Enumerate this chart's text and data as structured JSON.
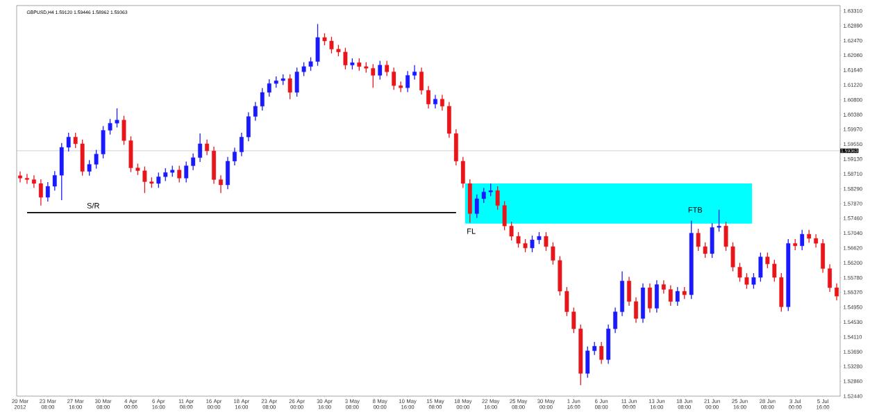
{
  "chart_data": {
    "type": "candlestick",
    "title": "GBPUSD,H4 1.59120 1.59446 1.58962 1.59363",
    "categories": [
      "20 Mar 2012",
      null,
      null,
      null,
      "23 Mar 08:00",
      null,
      null,
      null,
      "27 Mar 16:00",
      null,
      null,
      null,
      "30 Mar 08:00",
      null,
      null,
      null,
      "4 Apr 00:00",
      null,
      null,
      null,
      "6 Apr 16:00",
      null,
      null,
      null,
      "11 Apr 08:00",
      null,
      null,
      null,
      "16 Apr 00:00",
      null,
      null,
      null,
      "18 Apr 16:00",
      null,
      null,
      null,
      "23 Apr 08:00",
      null,
      null,
      null,
      "26 Apr 00:00",
      null,
      null,
      null,
      "30 Apr 16:00",
      null,
      null,
      null,
      "3 May 08:00",
      null,
      null,
      null,
      "8 May 00:00",
      null,
      null,
      null,
      "10 May 16:00",
      null,
      null,
      null,
      "15 May 08:00",
      null,
      null,
      null,
      "18 May 00:00",
      null,
      null,
      null,
      "22 May 16:00",
      null,
      null,
      null,
      "25 May 08:00",
      null,
      null,
      null,
      "30 May 00:00",
      null,
      null,
      null,
      "1 Jun 16:00",
      null,
      null,
      null,
      "6 Jun 08:00",
      null,
      null,
      null,
      "11 Jun 00:00",
      null,
      null,
      null,
      "13 Jun 16:00",
      null,
      null,
      null,
      "18 Jun 08:00",
      null,
      null,
      null,
      "21 Jun 00:00",
      null,
      null,
      null,
      "25 Jun 16:00",
      null,
      null,
      null,
      "28 Jun 08:00",
      null,
      null,
      null,
      "3 Jul 00:00",
      null,
      null,
      null,
      "5 Jul 16:00",
      null,
      null
    ],
    "ohlc": [
      [
        1.5866,
        1.5878,
        1.5847,
        1.5859
      ],
      [
        1.5859,
        1.5871,
        1.5843,
        1.5855
      ],
      [
        1.5855,
        1.5867,
        1.5832,
        1.5844
      ],
      [
        1.5844,
        1.5856,
        1.5782,
        1.5805
      ],
      [
        1.5805,
        1.5848,
        1.5793,
        1.5836
      ],
      [
        1.5836,
        1.5879,
        1.5824,
        1.5867
      ],
      [
        1.5867,
        1.5958,
        1.5797,
        1.5946
      ],
      [
        1.5946,
        1.5987,
        1.5934,
        1.5975
      ],
      [
        1.5975,
        1.5987,
        1.5944,
        1.5956
      ],
      [
        1.5956,
        1.5968,
        1.5866,
        1.5878
      ],
      [
        1.5878,
        1.591,
        1.5866,
        1.5898
      ],
      [
        1.5898,
        1.5939,
        1.5886,
        1.5927
      ],
      [
        1.5927,
        1.6006,
        1.5915,
        1.5994
      ],
      [
        1.5994,
        1.6026,
        1.5982,
        1.6014
      ],
      [
        1.6014,
        1.6056,
        1.6002,
        1.6023
      ],
      [
        1.6023,
        1.6035,
        1.5953,
        1.5965
      ],
      [
        1.5965,
        1.5977,
        1.5876,
        1.5888
      ],
      [
        1.5888,
        1.59,
        1.5868,
        1.588
      ],
      [
        1.588,
        1.5892,
        1.5817,
        1.5849
      ],
      [
        1.5849,
        1.5861,
        1.5832,
        1.5844
      ],
      [
        1.5844,
        1.5875,
        1.5832,
        1.5863
      ],
      [
        1.5863,
        1.5887,
        1.5851,
        1.5875
      ],
      [
        1.5875,
        1.5894,
        1.5863,
        1.5882
      ],
      [
        1.5882,
        1.5894,
        1.5847,
        1.5859
      ],
      [
        1.5859,
        1.5906,
        1.5847,
        1.5894
      ],
      [
        1.5894,
        1.5929,
        1.5882,
        1.5917
      ],
      [
        1.5917,
        1.5985,
        1.5905,
        1.5956
      ],
      [
        1.5956,
        1.5968,
        1.5924,
        1.5936
      ],
      [
        1.5936,
        1.5948,
        1.5843,
        1.5855
      ],
      [
        1.5855,
        1.5867,
        1.5817,
        1.584
      ],
      [
        1.584,
        1.5919,
        1.5828,
        1.5907
      ],
      [
        1.5907,
        1.5945,
        1.5895,
        1.5933
      ],
      [
        1.5933,
        1.5987,
        1.5921,
        1.5975
      ],
      [
        1.5975,
        1.6045,
        1.5963,
        1.6033
      ],
      [
        1.6033,
        1.6074,
        1.6021,
        1.6062
      ],
      [
        1.6062,
        1.6113,
        1.605,
        1.6101
      ],
      [
        1.6101,
        1.6138,
        1.6089,
        1.6126
      ],
      [
        1.6126,
        1.6146,
        1.6114,
        1.6134
      ],
      [
        1.6134,
        1.6152,
        1.6122,
        1.614
      ],
      [
        1.614,
        1.6152,
        1.6082,
        1.6101
      ],
      [
        1.6101,
        1.6171,
        1.6089,
        1.6159
      ],
      [
        1.6159,
        1.6186,
        1.6147,
        1.6174
      ],
      [
        1.6174,
        1.62,
        1.6162,
        1.6188
      ],
      [
        1.6188,
        1.6294,
        1.6176,
        1.6256
      ],
      [
        1.6256,
        1.6268,
        1.6234,
        1.6246
      ],
      [
        1.6246,
        1.6258,
        1.6211,
        1.6223
      ],
      [
        1.6223,
        1.6235,
        1.6203,
        1.6215
      ],
      [
        1.6215,
        1.6227,
        1.6166,
        1.6178
      ],
      [
        1.6178,
        1.6197,
        1.6166,
        1.6185
      ],
      [
        1.6185,
        1.6197,
        1.6162,
        1.6174
      ],
      [
        1.6174,
        1.6186,
        1.6157,
        1.6169
      ],
      [
        1.6169,
        1.6181,
        1.6114,
        1.6149
      ],
      [
        1.6149,
        1.619,
        1.6137,
        1.6178
      ],
      [
        1.6178,
        1.619,
        1.6147,
        1.6159
      ],
      [
        1.6159,
        1.6171,
        1.6108,
        1.612
      ],
      [
        1.612,
        1.6132,
        1.6102,
        1.6114
      ],
      [
        1.6114,
        1.6161,
        1.6102,
        1.6149
      ],
      [
        1.6149,
        1.6178,
        1.6137,
        1.6159
      ],
      [
        1.6159,
        1.6171,
        1.6095,
        1.6107
      ],
      [
        1.6107,
        1.6119,
        1.6056,
        1.6068
      ],
      [
        1.6068,
        1.6094,
        1.6056,
        1.6082
      ],
      [
        1.6082,
        1.6094,
        1.605,
        1.6062
      ],
      [
        1.6062,
        1.6074,
        1.5973,
        1.5985
      ],
      [
        1.5985,
        1.5997,
        1.5895,
        1.5907
      ],
      [
        1.5907,
        1.5919,
        1.5832,
        1.5844
      ],
      [
        1.5844,
        1.5856,
        1.5733,
        1.5759
      ],
      [
        1.5759,
        1.5813,
        1.5747,
        1.5801
      ],
      [
        1.5801,
        1.5832,
        1.5789,
        1.582
      ],
      [
        1.582,
        1.5844,
        1.5808,
        1.5824
      ],
      [
        1.5824,
        1.5836,
        1.577,
        1.5782
      ],
      [
        1.5782,
        1.5794,
        1.5712,
        1.5724
      ],
      [
        1.5724,
        1.5736,
        1.5683,
        1.5695
      ],
      [
        1.5695,
        1.5707,
        1.5663,
        1.5675
      ],
      [
        1.5675,
        1.5687,
        1.565,
        1.5662
      ],
      [
        1.5662,
        1.5697,
        1.565,
        1.5685
      ],
      [
        1.5685,
        1.5707,
        1.5673,
        1.5695
      ],
      [
        1.5695,
        1.5707,
        1.5654,
        1.5666
      ],
      [
        1.5666,
        1.5678,
        1.5615,
        1.5627
      ],
      [
        1.5627,
        1.5639,
        1.5528,
        1.554
      ],
      [
        1.554,
        1.5552,
        1.547,
        1.5482
      ],
      [
        1.5482,
        1.5494,
        1.5422,
        1.5434
      ],
      [
        1.5434,
        1.5446,
        1.5275,
        1.5308
      ],
      [
        1.5308,
        1.5384,
        1.5296,
        1.5372
      ],
      [
        1.5372,
        1.5397,
        1.536,
        1.5385
      ],
      [
        1.5385,
        1.5397,
        1.5335,
        1.5347
      ],
      [
        1.5347,
        1.5446,
        1.5335,
        1.5434
      ],
      [
        1.5434,
        1.5494,
        1.5422,
        1.5482
      ],
      [
        1.5482,
        1.5596,
        1.547,
        1.5569
      ],
      [
        1.5569,
        1.5581,
        1.5499,
        1.5511
      ],
      [
        1.5511,
        1.5523,
        1.5451,
        1.5463
      ],
      [
        1.5463,
        1.5562,
        1.5451,
        1.555
      ],
      [
        1.555,
        1.5562,
        1.548,
        1.5492
      ],
      [
        1.5492,
        1.5571,
        1.548,
        1.5559
      ],
      [
        1.5559,
        1.5571,
        1.5533,
        1.5545
      ],
      [
        1.5545,
        1.5557,
        1.5499,
        1.5511
      ],
      [
        1.5511,
        1.5552,
        1.5499,
        1.554
      ],
      [
        1.554,
        1.5552,
        1.5518,
        1.553
      ],
      [
        1.553,
        1.5739,
        1.5518,
        1.5704
      ],
      [
        1.5704,
        1.5716,
        1.5654,
        1.5666
      ],
      [
        1.5666,
        1.5678,
        1.5634,
        1.5646
      ],
      [
        1.5646,
        1.5732,
        1.5634,
        1.572
      ],
      [
        1.572,
        1.577,
        1.5708,
        1.5724
      ],
      [
        1.5724,
        1.5736,
        1.5654,
        1.5666
      ],
      [
        1.5666,
        1.5678,
        1.5596,
        1.5608
      ],
      [
        1.5608,
        1.562,
        1.5567,
        1.5579
      ],
      [
        1.5579,
        1.5591,
        1.5547,
        1.5559
      ],
      [
        1.5559,
        1.5591,
        1.5547,
        1.5579
      ],
      [
        1.5579,
        1.5649,
        1.5567,
        1.5637
      ],
      [
        1.5637,
        1.5649,
        1.5605,
        1.5617
      ],
      [
        1.5617,
        1.5629,
        1.5567,
        1.5579
      ],
      [
        1.5579,
        1.5591,
        1.5482,
        1.5496
      ],
      [
        1.5496,
        1.5687,
        1.5484,
        1.5675
      ],
      [
        1.5675,
        1.5687,
        1.5656,
        1.5668
      ],
      [
        1.5668,
        1.5713,
        1.5656,
        1.5701
      ],
      [
        1.5701,
        1.5713,
        1.5677,
        1.5689
      ],
      [
        1.5689,
        1.5701,
        1.5663,
        1.5675
      ],
      [
        1.5675,
        1.5687,
        1.5592,
        1.5604
      ],
      [
        1.5604,
        1.5616,
        1.5538,
        1.555
      ],
      [
        1.555,
        1.5562,
        1.5514,
        1.5526
      ]
    ],
    "series": [
      {
        "type": "line",
        "color": "#000000",
        "values": [
          null,
          1.5762,
          1.5762,
          1.5762,
          1.5762,
          1.5762,
          1.5762,
          1.5762,
          1.5762,
          1.5762,
          1.5762,
          1.5762,
          1.5762,
          1.5762,
          1.5762,
          1.5762,
          1.5762,
          1.5762,
          1.5762,
          1.5762,
          1.5762,
          1.5762,
          1.5762,
          1.5762,
          1.5762,
          1.5762,
          1.5762,
          1.5762,
          1.5762,
          1.5762,
          1.5762,
          1.5762,
          1.5762,
          1.5762,
          1.5762,
          1.5762,
          1.5762,
          1.5762,
          1.5762,
          1.5762,
          1.5762,
          1.5762,
          1.5762,
          1.5762,
          1.5762,
          1.5762,
          1.5762,
          1.5762,
          1.5762,
          1.5762,
          1.5762,
          1.5762,
          1.5762,
          1.5762,
          1.5762,
          1.5762,
          1.5762,
          1.5762,
          1.5762,
          1.5762,
          1.5762,
          1.5762,
          1.5762,
          1.5762,
          null,
          null,
          null,
          null,
          null,
          null,
          null,
          null,
          null,
          null,
          null,
          null,
          null,
          null,
          null,
          null,
          null,
          null,
          null,
          null,
          null,
          null,
          null,
          null,
          null,
          null,
          null,
          null,
          null,
          null,
          null,
          null,
          null,
          null,
          null,
          null,
          null,
          null,
          null,
          null,
          null,
          null,
          null,
          null,
          null,
          null,
          null,
          null,
          null,
          null,
          null,
          null,
          null,
          null,
          null
        ]
      }
    ],
    "bands": [
      {
        "axis": "y",
        "from": 1.5731,
        "to": 1.5844,
        "color": "#00ffff"
      }
    ],
    "ref_lines": [
      {
        "axis": "y",
        "value": 1.59363,
        "label": "1.59363",
        "color": "#a0a0a0"
      }
    ],
    "annotations": [
      "S/R",
      {
        "text": "FL",
        "y": 1.5733
      },
      "FTB"
    ],
    "ylim": [
      1.5244,
      1.6346
    ],
    "yticks": [
      {
        "value": 1.6331,
        "label": "1.63310"
      },
      {
        "value": 1.6289,
        "label": "1.62890"
      },
      {
        "value": 1.6247,
        "label": "1.62470"
      },
      {
        "value": 1.6206,
        "label": "1.62060"
      },
      {
        "value": 1.6164,
        "label": "1.61640"
      },
      {
        "value": 1.6122,
        "label": "1.61220"
      },
      {
        "value": 1.608,
        "label": "1.60800"
      },
      {
        "value": 1.6038,
        "label": "1.60380"
      },
      {
        "value": 1.5997,
        "label": "1.59970"
      },
      {
        "value": 1.5955,
        "label": "1.59550"
      },
      {
        "value": 1.5913,
        "label": "1.59130"
      },
      {
        "value": 1.5871,
        "label": "1.58710"
      },
      {
        "value": 1.5829,
        "label": "1.58290"
      },
      {
        "value": 1.5787,
        "label": "1.57870"
      },
      {
        "value": 1.5746,
        "label": "1.57460"
      },
      {
        "value": 1.5704,
        "label": "1.57040"
      },
      {
        "value": 1.5662,
        "label": "1.56620"
      },
      {
        "value": 1.562,
        "label": "1.56200"
      },
      {
        "value": 1.5578,
        "label": "1.55780"
      },
      {
        "value": 1.5537,
        "label": "1.55370"
      },
      {
        "value": 1.5495,
        "label": "1.54950"
      },
      {
        "value": 1.5453,
        "label": "1.54530"
      },
      {
        "value": 1.5411,
        "label": "1.54110"
      },
      {
        "value": 1.5369,
        "label": "1.53690"
      },
      {
        "value": 1.5328,
        "label": "1.53280"
      },
      {
        "value": 1.5286,
        "label": "1.52860"
      },
      {
        "value": 1.5244,
        "label": "1.52440"
      }
    ]
  }
}
